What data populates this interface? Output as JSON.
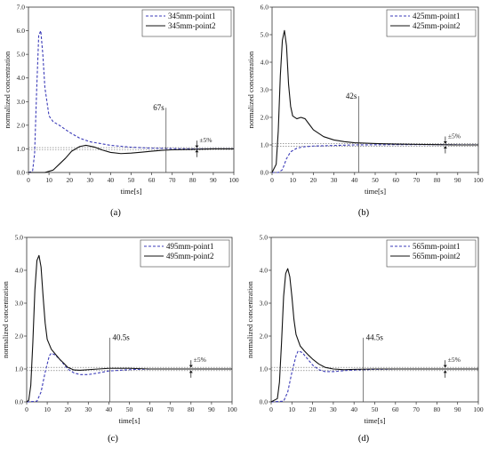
{
  "chart_data": [
    {
      "type": "line",
      "panel": "(a)",
      "xlabel": "time[s]",
      "ylabel": "normalized concentration",
      "xlim": [
        0,
        100
      ],
      "ylim": [
        0,
        7
      ],
      "xticks": [
        0,
        10,
        20,
        30,
        40,
        50,
        60,
        70,
        80,
        90,
        100
      ],
      "yticks": [
        0.0,
        1.0,
        2.0,
        3.0,
        4.0,
        5.0,
        6.0,
        7.0
      ],
      "legend_position": "top-right",
      "series": [
        {
          "name": "345mm-point1",
          "style": "dashed",
          "color": "#3b3bb8",
          "points": [
            [
              0,
              0
            ],
            [
              2,
              0.05
            ],
            [
              3,
              0.8
            ],
            [
              4,
              3.5
            ],
            [
              5,
              5.8
            ],
            [
              6,
              6.0
            ],
            [
              7,
              5.0
            ],
            [
              8,
              3.6
            ],
            [
              10,
              2.4
            ],
            [
              12,
              2.15
            ],
            [
              15,
              2.0
            ],
            [
              20,
              1.7
            ],
            [
              25,
              1.45
            ],
            [
              30,
              1.3
            ],
            [
              40,
              1.15
            ],
            [
              50,
              1.07
            ],
            [
              60,
              1.03
            ],
            [
              70,
              1.01
            ],
            [
              80,
              1.0
            ],
            [
              90,
              1.0
            ],
            [
              100,
              1.0
            ]
          ]
        },
        {
          "name": "345mm-point2",
          "style": "solid",
          "color": "#111111",
          "points": [
            [
              0,
              0
            ],
            [
              8,
              0
            ],
            [
              12,
              0.1
            ],
            [
              15,
              0.35
            ],
            [
              18,
              0.6
            ],
            [
              21,
              0.9
            ],
            [
              25,
              1.1
            ],
            [
              28,
              1.15
            ],
            [
              32,
              1.08
            ],
            [
              36,
              0.95
            ],
            [
              40,
              0.85
            ],
            [
              45,
              0.8
            ],
            [
              50,
              0.82
            ],
            [
              55,
              0.86
            ],
            [
              60,
              0.9
            ],
            [
              65,
              0.94
            ],
            [
              70,
              0.96
            ],
            [
              80,
              0.98
            ],
            [
              90,
              1.0
            ],
            [
              100,
              1.0
            ]
          ]
        }
      ],
      "marker_label": "67s",
      "marker_x": 67,
      "band_label": "±5%"
    },
    {
      "type": "line",
      "panel": "(b)",
      "xlabel": "time[s]",
      "ylabel": "normalized concentration",
      "xlim": [
        0,
        100
      ],
      "ylim": [
        0,
        6
      ],
      "xticks": [
        0,
        10,
        20,
        30,
        40,
        50,
        60,
        70,
        80,
        90,
        100
      ],
      "yticks": [
        0.0,
        1.0,
        2.0,
        3.0,
        4.0,
        5.0,
        6.0
      ],
      "legend_position": "top-right",
      "series": [
        {
          "name": "425mm-point1",
          "style": "dashed",
          "color": "#3b3bb8",
          "points": [
            [
              0,
              0
            ],
            [
              3,
              0
            ],
            [
              5,
              0.1
            ],
            [
              7,
              0.5
            ],
            [
              9,
              0.75
            ],
            [
              12,
              0.88
            ],
            [
              15,
              0.93
            ],
            [
              20,
              0.96
            ],
            [
              30,
              0.98
            ],
            [
              40,
              1.0
            ],
            [
              60,
              1.01
            ],
            [
              80,
              1.01
            ],
            [
              100,
              1.0
            ]
          ]
        },
        {
          "name": "425mm-point2",
          "style": "solid",
          "color": "#111111",
          "points": [
            [
              0,
              0
            ],
            [
              2,
              0.3
            ],
            [
              3,
              1.5
            ],
            [
              4,
              3.5
            ],
            [
              5,
              4.8
            ],
            [
              6,
              5.15
            ],
            [
              7,
              4.6
            ],
            [
              8,
              3.2
            ],
            [
              9,
              2.4
            ],
            [
              10,
              2.05
            ],
            [
              12,
              1.95
            ],
            [
              14,
              2.0
            ],
            [
              16,
              1.95
            ],
            [
              18,
              1.75
            ],
            [
              20,
              1.55
            ],
            [
              25,
              1.3
            ],
            [
              30,
              1.18
            ],
            [
              35,
              1.12
            ],
            [
              40,
              1.08
            ],
            [
              50,
              1.05
            ],
            [
              60,
              1.03
            ],
            [
              70,
              1.02
            ],
            [
              80,
              1.01
            ],
            [
              90,
              1.0
            ],
            [
              100,
              1.0
            ]
          ]
        }
      ],
      "marker_label": "42s",
      "marker_x": 42,
      "band_label": "±5%"
    },
    {
      "type": "line",
      "panel": "(c)",
      "xlabel": "time[s]",
      "ylabel": "normalized concentration",
      "xlim": [
        0,
        100
      ],
      "ylim": [
        0,
        5
      ],
      "xticks": [
        0,
        10,
        20,
        30,
        40,
        50,
        60,
        70,
        80,
        90,
        100
      ],
      "yticks": [
        0.0,
        1.0,
        2.0,
        3.0,
        4.0,
        5.0
      ],
      "legend_position": "top-right",
      "series": [
        {
          "name": "495mm-point1",
          "style": "dashed",
          "color": "#3b3bb8",
          "points": [
            [
              0,
              0
            ],
            [
              5,
              0.02
            ],
            [
              7,
              0.3
            ],
            [
              9,
              0.9
            ],
            [
              11,
              1.4
            ],
            [
              12,
              1.48
            ],
            [
              14,
              1.42
            ],
            [
              16,
              1.3
            ],
            [
              18,
              1.15
            ],
            [
              20,
              1.0
            ],
            [
              23,
              0.88
            ],
            [
              26,
              0.83
            ],
            [
              30,
              0.83
            ],
            [
              35,
              0.88
            ],
            [
              40,
              0.94
            ],
            [
              50,
              0.98
            ],
            [
              60,
              1.0
            ],
            [
              80,
              1.0
            ],
            [
              100,
              1.0
            ]
          ]
        },
        {
          "name": "495mm-point2",
          "style": "solid",
          "color": "#111111",
          "points": [
            [
              0,
              0
            ],
            [
              1,
              0.05
            ],
            [
              2,
              0.5
            ],
            [
              3,
              1.8
            ],
            [
              4,
              3.4
            ],
            [
              5,
              4.3
            ],
            [
              6,
              4.45
            ],
            [
              7,
              4.1
            ],
            [
              8,
              3.2
            ],
            [
              9,
              2.4
            ],
            [
              10,
              1.9
            ],
            [
              12,
              1.6
            ],
            [
              14,
              1.45
            ],
            [
              16,
              1.3
            ],
            [
              18,
              1.18
            ],
            [
              20,
              1.05
            ],
            [
              23,
              0.97
            ],
            [
              26,
              0.96
            ],
            [
              30,
              0.98
            ],
            [
              40,
              1.02
            ],
            [
              50,
              1.02
            ],
            [
              60,
              1.0
            ],
            [
              80,
              1.0
            ],
            [
              100,
              1.0
            ]
          ]
        }
      ],
      "marker_label": "40.5s",
      "marker_x": 40.5,
      "band_label": "±5%"
    },
    {
      "type": "line",
      "panel": "(d)",
      "xlabel": "time[s]",
      "ylabel": "normalized concentration",
      "xlim": [
        0,
        100
      ],
      "ylim": [
        0,
        5
      ],
      "xticks": [
        0,
        10,
        20,
        30,
        40,
        50,
        60,
        70,
        80,
        90,
        100
      ],
      "yticks": [
        0.0,
        1.0,
        2.0,
        3.0,
        4.0,
        5.0
      ],
      "legend_position": "top-right",
      "series": [
        {
          "name": "565mm-point1",
          "style": "dashed",
          "color": "#3b3bb8",
          "points": [
            [
              0,
              0
            ],
            [
              6,
              0.02
            ],
            [
              8,
              0.3
            ],
            [
              10,
              0.9
            ],
            [
              12,
              1.4
            ],
            [
              13,
              1.55
            ],
            [
              15,
              1.5
            ],
            [
              17,
              1.35
            ],
            [
              20,
              1.12
            ],
            [
              23,
              0.98
            ],
            [
              26,
              0.92
            ],
            [
              30,
              0.92
            ],
            [
              35,
              0.95
            ],
            [
              40,
              0.97
            ],
            [
              50,
              0.99
            ],
            [
              60,
              1.0
            ],
            [
              80,
              1.0
            ],
            [
              100,
              1.0
            ]
          ]
        },
        {
          "name": "565mm-point2",
          "style": "solid",
          "color": "#111111",
          "points": [
            [
              0,
              0
            ],
            [
              3,
              0.1
            ],
            [
              4,
              0.6
            ],
            [
              5,
              1.8
            ],
            [
              6,
              3.2
            ],
            [
              7,
              3.9
            ],
            [
              8,
              4.05
            ],
            [
              9,
              3.8
            ],
            [
              10,
              3.2
            ],
            [
              11,
              2.5
            ],
            [
              12,
              2.05
            ],
            [
              14,
              1.7
            ],
            [
              16,
              1.55
            ],
            [
              18,
              1.42
            ],
            [
              20,
              1.3
            ],
            [
              23,
              1.15
            ],
            [
              26,
              1.05
            ],
            [
              30,
              1.0
            ],
            [
              35,
              0.98
            ],
            [
              40,
              0.99
            ],
            [
              50,
              1.0
            ],
            [
              60,
              1.0
            ],
            [
              80,
              1.0
            ],
            [
              100,
              1.0
            ]
          ]
        }
      ],
      "marker_label": "44.5s",
      "marker_x": 44.5,
      "band_label": "±5%"
    }
  ]
}
